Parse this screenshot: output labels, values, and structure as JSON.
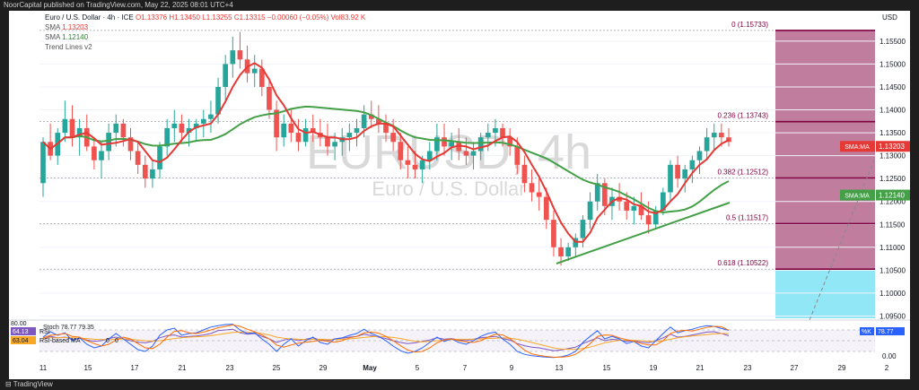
{
  "topbar": {
    "text": "NoorCapital published on TradingView.com, May 22, 2025 08:01 UTC+4"
  },
  "footer": {
    "logo_text": "TradingView"
  },
  "header": {
    "symbol": "Euro / U.S. Dollar · 4h · ICE",
    "open": "O1.13376",
    "high": "H1.13450",
    "low": "L1.13255",
    "close": "C1.13315",
    "change": "−0.00060 (−0.05%)",
    "volume": "Vol83.92 K",
    "sma1_label": "SMA",
    "sma1_value": "1.13203",
    "sma2_label": "SMA",
    "sma2_value": "1.12140",
    "trend_label": "Trend Lines v2"
  },
  "watermark": {
    "ticker": "EURUSD, 4h",
    "name": "Euro / U.S. Dollar"
  },
  "colors": {
    "up": "#26a69a",
    "down": "#ef5350",
    "sma_fast": "#e53935",
    "sma_slow": "#43a047",
    "fib_zone": "#b5668c",
    "fib_zone_low": "#7fe3f5",
    "fib_line": "#800040"
  },
  "rsi_panel": {
    "rsi_label": "RSI",
    "rsi_value": "64.13",
    "ma_label": "RSI-based MA",
    "ma_value": "63.04",
    "stoch_label": "Stoch",
    "stoch_k": "78.77",
    "stoch_d": "79.35",
    "level_top": "80.00",
    "k_label": "%K",
    "axis_zero": "0.00",
    "rsi_zero": "0",
    "stoch_zero": "0"
  },
  "chart_data": [
    {
      "type": "candlestick",
      "title": "Euro / U.S. Dollar · 4h · ICE",
      "currency": "USD",
      "ylim": [
        1.0945,
        1.1585
      ],
      "yticks": [
        "1.15500",
        "1.15000",
        "1.14500",
        "1.14000",
        "1.13500",
        "1.13000",
        "1.12500",
        "1.12000",
        "1.11500",
        "1.11000",
        "1.10500",
        "1.10000",
        "1.09500"
      ],
      "yticks_values": [
        1.155,
        1.15,
        1.145,
        1.14,
        1.135,
        1.13,
        1.125,
        1.12,
        1.115,
        1.11,
        1.105,
        1.1,
        1.095
      ],
      "xticks": [
        "11",
        "15",
        "17",
        "21",
        "23",
        "25",
        "29",
        "May",
        "5",
        "7",
        "9",
        "13",
        "15",
        "19",
        "21",
        "23",
        "27",
        "29",
        "2"
      ],
      "price_labels": [
        {
          "name": "SMA:MA",
          "value": "1.13203",
          "color": "#e53935"
        },
        {
          "name": "SMA:MA",
          "value": "1.12140",
          "color": "#43a047"
        }
      ],
      "fibonacci": [
        {
          "level": "0",
          "value": "1.15733"
        },
        {
          "level": "0.236",
          "value": "1.13743"
        },
        {
          "level": "0.382",
          "value": "1.12512"
        },
        {
          "level": "0.5",
          "value": "1.11517"
        },
        {
          "level": "0.618",
          "value": "1.10522"
        }
      ],
      "candles": [
        [
          1.124,
          1.134,
          1.121,
          1.133
        ],
        [
          1.133,
          1.137,
          1.129,
          1.13
        ],
        [
          1.13,
          1.136,
          1.128,
          1.135
        ],
        [
          1.135,
          1.142,
          1.133,
          1.138
        ],
        [
          1.138,
          1.141,
          1.132,
          1.134
        ],
        [
          1.134,
          1.138,
          1.13,
          1.136
        ],
        [
          1.136,
          1.139,
          1.131,
          1.132
        ],
        [
          1.132,
          1.134,
          1.127,
          1.129
        ],
        [
          1.129,
          1.133,
          1.125,
          1.131
        ],
        [
          1.131,
          1.137,
          1.129,
          1.135
        ],
        [
          1.135,
          1.139,
          1.132,
          1.137
        ],
        [
          1.137,
          1.138,
          1.132,
          1.134
        ],
        [
          1.134,
          1.136,
          1.129,
          1.131
        ],
        [
          1.131,
          1.133,
          1.126,
          1.128
        ],
        [
          1.128,
          1.13,
          1.123,
          1.125
        ],
        [
          1.125,
          1.129,
          1.123,
          1.127
        ],
        [
          1.127,
          1.133,
          1.125,
          1.132
        ],
        [
          1.132,
          1.138,
          1.13,
          1.136
        ],
        [
          1.136,
          1.14,
          1.133,
          1.137
        ],
        [
          1.137,
          1.139,
          1.133,
          1.135
        ],
        [
          1.135,
          1.138,
          1.132,
          1.136
        ],
        [
          1.136,
          1.138,
          1.133,
          1.137
        ],
        [
          1.137,
          1.14,
          1.134,
          1.138
        ],
        [
          1.138,
          1.142,
          1.135,
          1.139
        ],
        [
          1.139,
          1.147,
          1.137,
          1.145
        ],
        [
          1.145,
          1.152,
          1.142,
          1.15
        ],
        [
          1.15,
          1.156,
          1.147,
          1.153
        ],
        [
          1.153,
          1.157,
          1.149,
          1.151
        ],
        [
          1.151,
          1.154,
          1.146,
          1.148
        ],
        [
          1.148,
          1.152,
          1.145,
          1.149
        ],
        [
          1.149,
          1.151,
          1.143,
          1.145
        ],
        [
          1.145,
          1.147,
          1.138,
          1.14
        ],
        [
          1.14,
          1.142,
          1.131,
          1.134
        ],
        [
          1.134,
          1.139,
          1.132,
          1.137
        ],
        [
          1.137,
          1.14,
          1.133,
          1.135
        ],
        [
          1.135,
          1.138,
          1.131,
          1.133
        ],
        [
          1.133,
          1.138,
          1.132,
          1.136
        ],
        [
          1.136,
          1.139,
          1.133,
          1.135
        ],
        [
          1.135,
          1.138,
          1.132,
          1.134
        ],
        [
          1.134,
          1.137,
          1.13,
          1.132
        ],
        [
          1.132,
          1.135,
          1.129,
          1.133
        ],
        [
          1.133,
          1.136,
          1.13,
          1.134
        ],
        [
          1.134,
          1.137,
          1.131,
          1.135
        ],
        [
          1.135,
          1.138,
          1.132,
          1.136
        ],
        [
          1.136,
          1.141,
          1.134,
          1.139
        ],
        [
          1.139,
          1.142,
          1.136,
          1.138
        ],
        [
          1.138,
          1.141,
          1.135,
          1.137
        ],
        [
          1.137,
          1.139,
          1.133,
          1.135
        ],
        [
          1.135,
          1.138,
          1.131,
          1.133
        ],
        [
          1.133,
          1.135,
          1.127,
          1.129
        ],
        [
          1.129,
          1.132,
          1.125,
          1.128
        ],
        [
          1.128,
          1.131,
          1.125,
          1.127
        ],
        [
          1.127,
          1.13,
          1.124,
          1.129
        ],
        [
          1.129,
          1.133,
          1.127,
          1.131
        ],
        [
          1.131,
          1.137,
          1.129,
          1.134
        ],
        [
          1.134,
          1.137,
          1.13,
          1.132
        ],
        [
          1.132,
          1.135,
          1.129,
          1.133
        ],
        [
          1.133,
          1.136,
          1.129,
          1.131
        ],
        [
          1.131,
          1.134,
          1.128,
          1.13
        ],
        [
          1.13,
          1.133,
          1.127,
          1.131
        ],
        [
          1.131,
          1.135,
          1.129,
          1.134
        ],
        [
          1.134,
          1.137,
          1.131,
          1.135
        ],
        [
          1.135,
          1.138,
          1.132,
          1.136
        ],
        [
          1.136,
          1.137,
          1.132,
          1.134
        ],
        [
          1.134,
          1.136,
          1.13,
          1.132
        ],
        [
          1.132,
          1.134,
          1.126,
          1.128
        ],
        [
          1.128,
          1.13,
          1.122,
          1.124
        ],
        [
          1.124,
          1.127,
          1.12,
          1.122
        ],
        [
          1.122,
          1.125,
          1.118,
          1.121
        ],
        [
          1.121,
          1.123,
          1.114,
          1.116
        ],
        [
          1.116,
          1.118,
          1.108,
          1.11
        ],
        [
          1.11,
          1.112,
          1.106,
          1.108
        ],
        [
          1.108,
          1.111,
          1.107,
          1.11
        ],
        [
          1.11,
          1.113,
          1.108,
          1.112
        ],
        [
          1.112,
          1.117,
          1.11,
          1.116
        ],
        [
          1.116,
          1.122,
          1.114,
          1.12
        ],
        [
          1.12,
          1.126,
          1.118,
          1.124
        ],
        [
          1.124,
          1.125,
          1.117,
          1.119
        ],
        [
          1.119,
          1.123,
          1.116,
          1.121
        ],
        [
          1.121,
          1.124,
          1.118,
          1.12
        ],
        [
          1.12,
          1.122,
          1.116,
          1.118
        ],
        [
          1.118,
          1.121,
          1.115,
          1.119
        ],
        [
          1.119,
          1.122,
          1.116,
          1.117
        ],
        [
          1.117,
          1.12,
          1.113,
          1.115
        ],
        [
          1.115,
          1.119,
          1.114,
          1.118
        ],
        [
          1.118,
          1.123,
          1.117,
          1.122
        ],
        [
          1.122,
          1.129,
          1.12,
          1.128
        ],
        [
          1.128,
          1.13,
          1.123,
          1.125
        ],
        [
          1.125,
          1.128,
          1.122,
          1.127
        ],
        [
          1.127,
          1.13,
          1.124,
          1.129
        ],
        [
          1.129,
          1.132,
          1.126,
          1.131
        ],
        [
          1.131,
          1.136,
          1.129,
          1.134
        ],
        [
          1.134,
          1.137,
          1.131,
          1.135
        ],
        [
          1.135,
          1.137,
          1.132,
          1.134
        ],
        [
          1.134,
          1.136,
          1.132,
          1.133
        ]
      ],
      "sma_fast_label": "SMA",
      "sma_slow_label": "SMA"
    },
    {
      "type": "line",
      "title": "RSI / Stoch",
      "ylim": [
        0,
        100
      ],
      "yticks": [
        "80.00",
        "0.00"
      ],
      "series": [
        {
          "name": "RSI",
          "values": [
            55,
            62,
            58,
            60,
            54,
            57,
            52,
            48,
            50,
            56,
            60,
            55,
            50,
            46,
            44,
            48,
            58,
            64,
            66,
            60,
            62,
            63,
            66,
            70,
            78,
            80,
            82,
            72,
            68,
            70,
            62,
            55,
            45,
            52,
            56,
            50,
            54,
            58,
            52,
            50,
            55,
            57,
            60,
            62,
            68,
            64,
            60,
            56,
            50,
            45,
            42,
            44,
            48,
            52,
            58,
            54,
            56,
            52,
            50,
            54,
            58,
            60,
            62,
            56,
            52,
            42,
            36,
            32,
            30,
            26,
            22,
            24,
            28,
            32,
            42,
            50,
            58,
            50,
            54,
            52,
            48,
            50,
            46,
            44,
            50,
            58,
            68,
            60,
            62,
            66,
            70,
            74,
            75,
            70,
            64
          ]
        },
        {
          "name": "RSI-based MA",
          "values": [
            56,
            58,
            58,
            59,
            58,
            57,
            56,
            54,
            53,
            53,
            54,
            55,
            54,
            52,
            50,
            49,
            50,
            53,
            56,
            58,
            60,
            61,
            62,
            64,
            67,
            70,
            73,
            74,
            73,
            72,
            70,
            66,
            60,
            57,
            55,
            54,
            53,
            54,
            54,
            53,
            53,
            54,
            55,
            57,
            59,
            61,
            62,
            61,
            59,
            56,
            52,
            48,
            47,
            48,
            50,
            52,
            53,
            54,
            54,
            54,
            55,
            56,
            57,
            58,
            57,
            54,
            50,
            45,
            40,
            35,
            30,
            27,
            26,
            26,
            28,
            32,
            38,
            44,
            48,
            51,
            52,
            51,
            50,
            48,
            48,
            50,
            54,
            58,
            61,
            63,
            65,
            67,
            69,
            70,
            70
          ]
        },
        {
          "name": "Stoch %K",
          "values": [
            60,
            75,
            65,
            72,
            50,
            58,
            40,
            30,
            35,
            55,
            70,
            55,
            40,
            25,
            20,
            35,
            65,
            80,
            85,
            65,
            70,
            72,
            80,
            88,
            92,
            95,
            96,
            80,
            70,
            72,
            55,
            40,
            20,
            40,
            55,
            35,
            50,
            60,
            45,
            40,
            55,
            58,
            65,
            70,
            82,
            70,
            62,
            50,
            35,
            22,
            15,
            20,
            30,
            45,
            60,
            48,
            55,
            45,
            40,
            50,
            62,
            70,
            74,
            55,
            40,
            20,
            12,
            8,
            6,
            4,
            3,
            5,
            10,
            20,
            45,
            62,
            78,
            55,
            62,
            55,
            42,
            48,
            35,
            30,
            50,
            70,
            88,
            72,
            78,
            82,
            88,
            92,
            90,
            84,
            78.77
          ]
        },
        {
          "name": "Stoch %D",
          "values": [
            58,
            65,
            67,
            70,
            62,
            60,
            50,
            42,
            35,
            40,
            52,
            60,
            55,
            42,
            30,
            28,
            40,
            60,
            76,
            78,
            72,
            70,
            74,
            80,
            86,
            90,
            94,
            90,
            82,
            75,
            66,
            55,
            38,
            32,
            38,
            43,
            46,
            48,
            51,
            48,
            46,
            50,
            58,
            62,
            72,
            74,
            71,
            62,
            50,
            36,
            24,
            18,
            20,
            30,
            44,
            52,
            55,
            50,
            47,
            45,
            50,
            60,
            68,
            66,
            56,
            40,
            24,
            13,
            9,
            6,
            4,
            4,
            6,
            12,
            25,
            42,
            62,
            66,
            65,
            58,
            53,
            48,
            42,
            38,
            38,
            50,
            70,
            77,
            79,
            77,
            82,
            87,
            90,
            89,
            79.35
          ]
        }
      ]
    }
  ]
}
